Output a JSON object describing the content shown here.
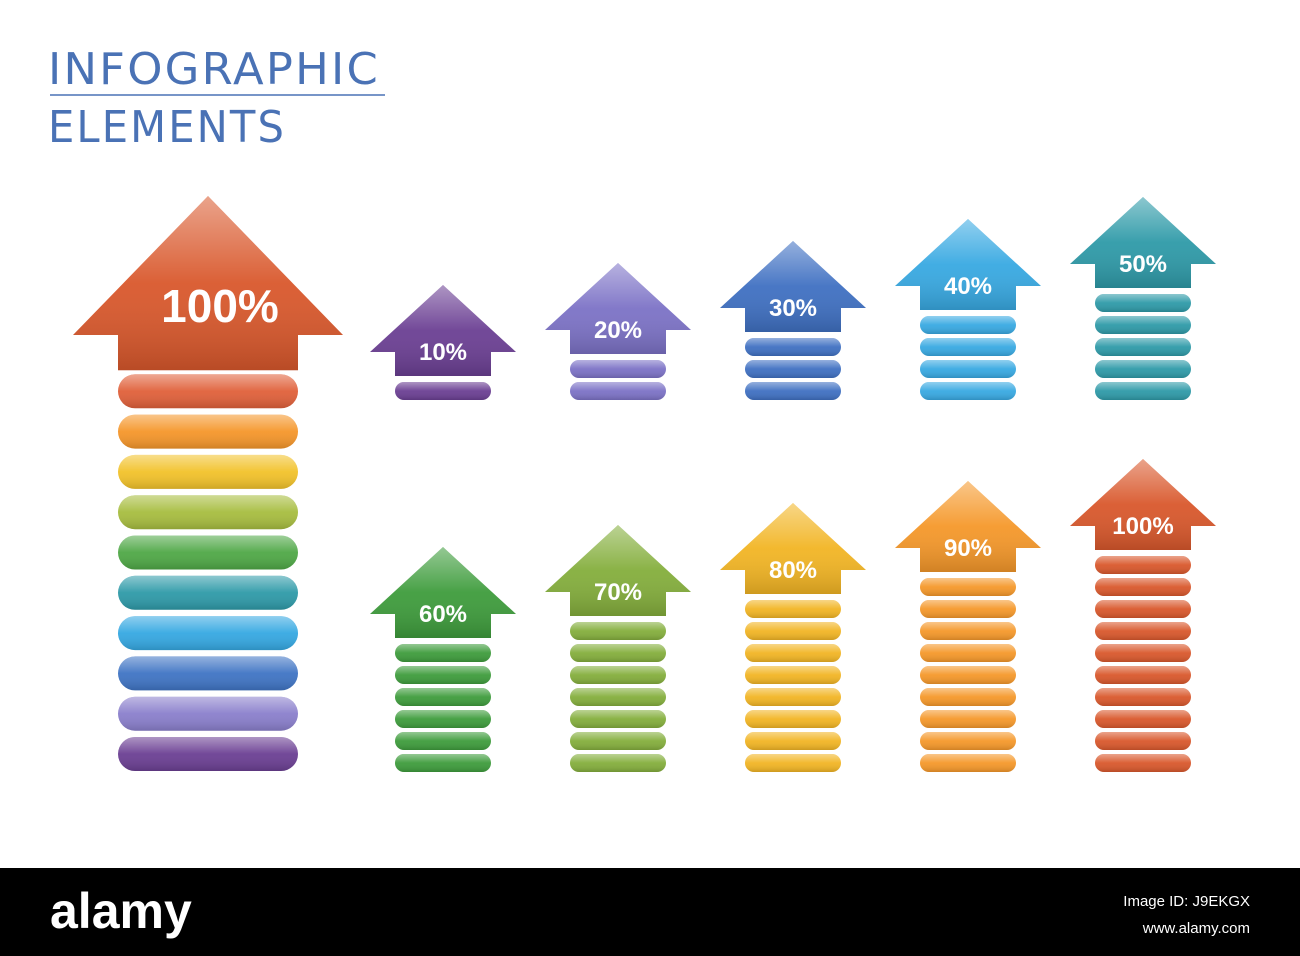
{
  "header": {
    "line1": "INFOGRAPHIC",
    "line2": "ELEMENTS"
  },
  "main_arrow": {
    "value": 100,
    "label": "100%",
    "color": "#d9582c",
    "stripe_colors": [
      "#e0603a",
      "#f5962a",
      "#f2c22a",
      "#a7bd3f",
      "#4fa846",
      "#2e9aa8",
      "#35a8e2",
      "#3f74c4",
      "#8a7fcc",
      "#6b3f93"
    ]
  },
  "arrows": [
    {
      "value": 10,
      "label": "10%",
      "color": "#6b3f93"
    },
    {
      "value": 20,
      "label": "20%",
      "color": "#7c72c6"
    },
    {
      "value": 30,
      "label": "30%",
      "color": "#3f70c2"
    },
    {
      "value": 40,
      "label": "40%",
      "color": "#38a9e2"
    },
    {
      "value": 50,
      "label": "50%",
      "color": "#2e9aa8"
    },
    {
      "value": 60,
      "label": "60%",
      "color": "#3e9c3c"
    },
    {
      "value": 70,
      "label": "70%",
      "color": "#84ae3c"
    },
    {
      "value": 80,
      "label": "80%",
      "color": "#f2b524"
    },
    {
      "value": 90,
      "label": "90%",
      "color": "#f5982a"
    },
    {
      "value": 100,
      "label": "100%",
      "color": "#d9582c"
    }
  ],
  "footer": {
    "brand": "alamy",
    "image_id": "Image ID: J9EKGX",
    "url": "www.alamy.com"
  }
}
